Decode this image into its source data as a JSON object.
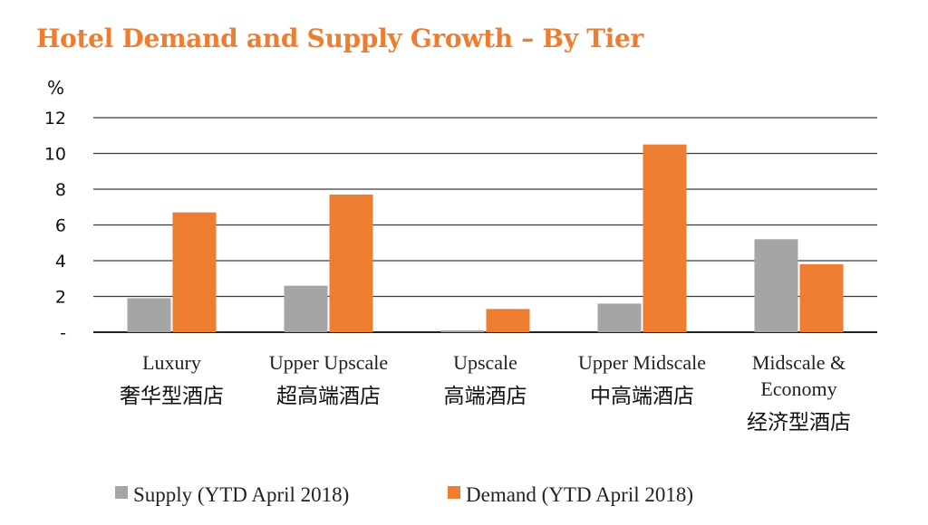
{
  "chart_data": {
    "type": "bar",
    "title": "Hotel Demand and Supply Growth – By Tier",
    "ylabel": "%",
    "ylim": [
      0,
      12
    ],
    "yticks": [
      "-",
      "2",
      "4",
      "6",
      "8",
      "10",
      "12"
    ],
    "grid": true,
    "legend_position": "bottom",
    "categories": [
      [
        "Luxury",
        "奢华型酒店"
      ],
      [
        "Upper Upscale",
        "超高端酒店"
      ],
      [
        "Upscale",
        "高端酒店"
      ],
      [
        "Upper Midscale",
        "中高端酒店"
      ],
      [
        "Midscale &",
        "Economy",
        "经济型酒店"
      ]
    ],
    "series": [
      {
        "name": "Supply (YTD April 2018)",
        "color": "#A5A5A5",
        "values": [
          1.9,
          2.6,
          0.1,
          1.6,
          5.2
        ]
      },
      {
        "name": "Demand (YTD April 2018)",
        "color": "#ED7D31",
        "values": [
          6.7,
          7.7,
          1.3,
          10.5,
          3.8
        ]
      }
    ]
  }
}
